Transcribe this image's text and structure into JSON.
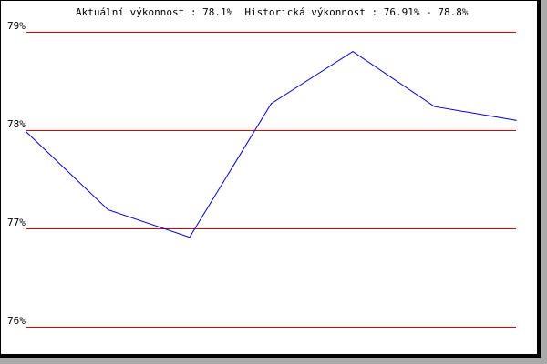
{
  "chart_data": {
    "type": "line",
    "title": "Aktuální výkonnost : 78.1%  Historická výkonnost : 76.91% - 78.8%",
    "xlabel": "",
    "ylabel": "",
    "ylim": [
      76,
      79
    ],
    "yticks": [
      79,
      78,
      77,
      76
    ],
    "ytick_labels": [
      "79%",
      "78%",
      "77%",
      "76%"
    ],
    "grid": true,
    "series": [
      {
        "values": [
          77.98,
          77.19,
          76.91,
          78.27,
          78.8,
          78.24,
          78.1
        ],
        "color": "#0000cc"
      }
    ],
    "grid_color": "#dd0000"
  }
}
